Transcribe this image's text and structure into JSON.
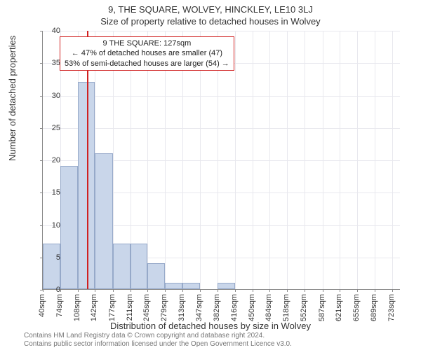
{
  "title_main": "9, THE SQUARE, WOLVEY, HINCKLEY, LE10 3LJ",
  "title_sub": "Size of property relative to detached houses in Wolvey",
  "ylabel": "Number of detached properties",
  "xlabel": "Distribution of detached houses by size in Wolvey",
  "chart": {
    "type": "histogram",
    "x_min": 40,
    "x_max": 740,
    "x_tick_step": 34,
    "x_tick_suffix": "sqm",
    "x_ticks": [
      40,
      74,
      108,
      142,
      177,
      211,
      245,
      279,
      313,
      347,
      382,
      416,
      450,
      484,
      518,
      552,
      587,
      621,
      655,
      689,
      723
    ],
    "y_min": 0,
    "y_max": 40,
    "y_tick_step": 5,
    "bar_color": "#c9d6ea",
    "bar_border": "#96a9c9",
    "grid_color": "#e8e8ee",
    "background": "#ffffff",
    "bins": [
      {
        "start": 40,
        "end": 74,
        "count": 7
      },
      {
        "start": 74,
        "end": 108,
        "count": 19
      },
      {
        "start": 108,
        "end": 142,
        "count": 32
      },
      {
        "start": 142,
        "end": 177,
        "count": 21
      },
      {
        "start": 177,
        "end": 211,
        "count": 7
      },
      {
        "start": 211,
        "end": 245,
        "count": 7
      },
      {
        "start": 245,
        "end": 279,
        "count": 4
      },
      {
        "start": 279,
        "end": 313,
        "count": 1
      },
      {
        "start": 313,
        "end": 347,
        "count": 1
      },
      {
        "start": 347,
        "end": 382,
        "count": 0
      },
      {
        "start": 382,
        "end": 416,
        "count": 1
      },
      {
        "start": 416,
        "end": 450,
        "count": 0
      },
      {
        "start": 450,
        "end": 484,
        "count": 0
      },
      {
        "start": 484,
        "end": 518,
        "count": 0
      },
      {
        "start": 518,
        "end": 552,
        "count": 0
      },
      {
        "start": 552,
        "end": 587,
        "count": 0
      },
      {
        "start": 587,
        "end": 621,
        "count": 0
      },
      {
        "start": 621,
        "end": 655,
        "count": 0
      },
      {
        "start": 655,
        "end": 689,
        "count": 0
      },
      {
        "start": 689,
        "end": 723,
        "count": 0
      }
    ],
    "marker": {
      "value": 127,
      "color": "#d02020"
    },
    "annotation": {
      "line1": "9 THE SQUARE: 127sqm",
      "line2": "← 47% of detached houses are smaller (47)",
      "line3": "53% of semi-detached houses are larger (54) →"
    }
  },
  "footer_line1": "Contains HM Land Registry data © Crown copyright and database right 2024.",
  "footer_line2": "Contains public sector information licensed under the Open Government Licence v3.0."
}
